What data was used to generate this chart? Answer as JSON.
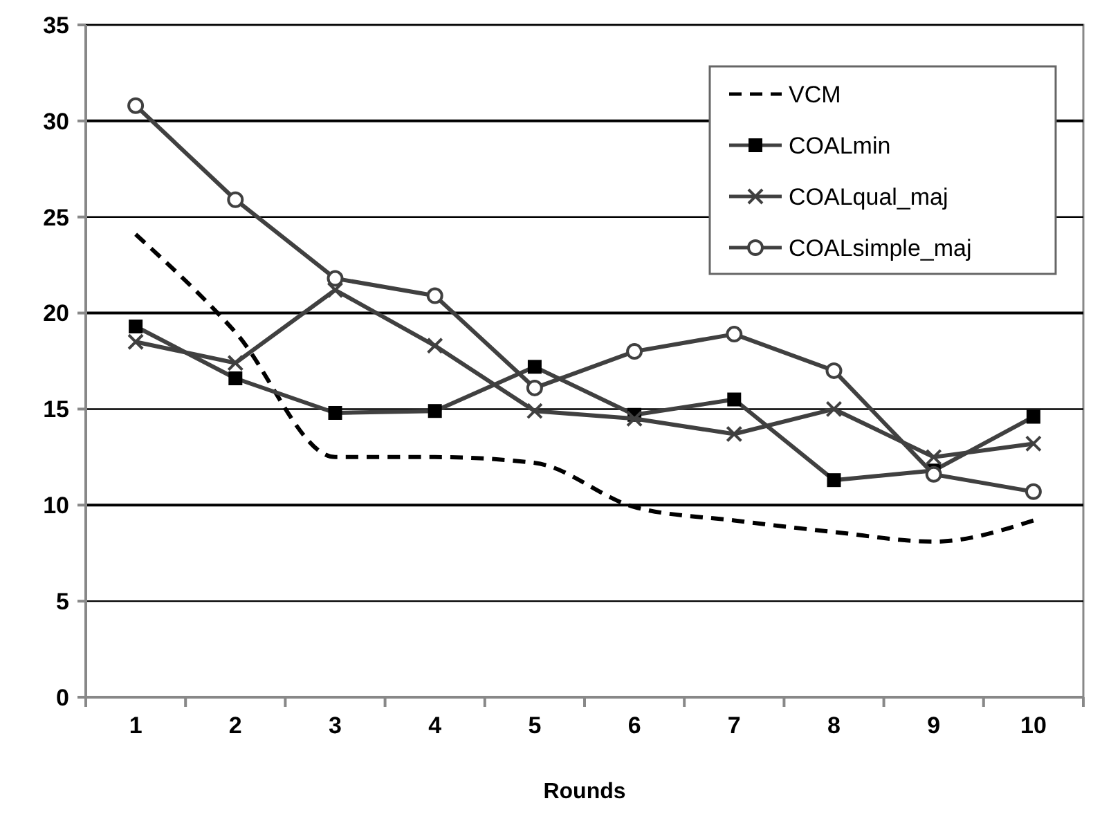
{
  "chart_data": {
    "type": "line",
    "xlabel": "Rounds",
    "categories": [
      "1",
      "2",
      "3",
      "4",
      "5",
      "6",
      "7",
      "8",
      "9",
      "10"
    ],
    "ylim": [
      0,
      35
    ],
    "yticks": [
      0,
      5,
      10,
      15,
      20,
      25,
      30,
      35
    ],
    "grid": "y",
    "legend": "top right",
    "series": [
      {
        "name": "VCM",
        "color": "#000000",
        "line_style": "dashed",
        "marker": "none",
        "values": [
          24.1,
          19.0,
          12.5,
          12.5,
          12.2,
          9.9,
          9.2,
          8.6,
          8.1,
          9.2
        ]
      },
      {
        "name": "COALmin",
        "color": "#404040",
        "line_style": "solid",
        "marker": "square",
        "values": [
          19.3,
          16.6,
          14.8,
          14.9,
          17.2,
          14.7,
          15.5,
          11.3,
          11.8,
          14.6
        ]
      },
      {
        "name": "COALqual_maj",
        "color": "#404040",
        "line_style": "solid",
        "marker": "cross",
        "values": [
          18.5,
          17.4,
          21.2,
          18.3,
          14.9,
          14.5,
          13.7,
          15.0,
          12.5,
          13.2
        ]
      },
      {
        "name": "COALsimple_maj",
        "color": "#404040",
        "line_style": "solid",
        "marker": "circle",
        "values": [
          30.8,
          25.9,
          21.8,
          20.9,
          16.1,
          18.0,
          18.9,
          17.0,
          11.6,
          10.7
        ]
      }
    ]
  }
}
